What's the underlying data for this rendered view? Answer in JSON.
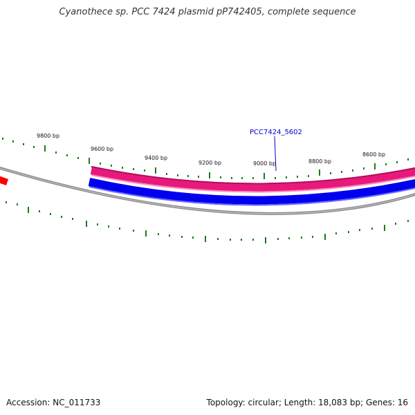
{
  "title": "Cyanothece sp. PCC 7424 plasmid pP742405, complete sequence",
  "accession_text": "Accession: NC_011733",
  "summary_text": "Topology: circular; Length: 18,083 bp; Genes: 16",
  "tick_labels": {
    "t9800": "9800 bp",
    "t9600": "9600 bp",
    "t9400": "9400 bp",
    "t9200": "9200 bp",
    "t9000": "9000 bp",
    "t8800": "8800 bp",
    "t8600": "8600 bp"
  },
  "gene_label": "PCC7424_5602",
  "colors": {
    "forward_gene": "#e8197d",
    "reverse_gene": "#0000ee",
    "backbone": "#888888",
    "ticks": "#1a7a1a",
    "other_gene": "#ff0000"
  }
}
